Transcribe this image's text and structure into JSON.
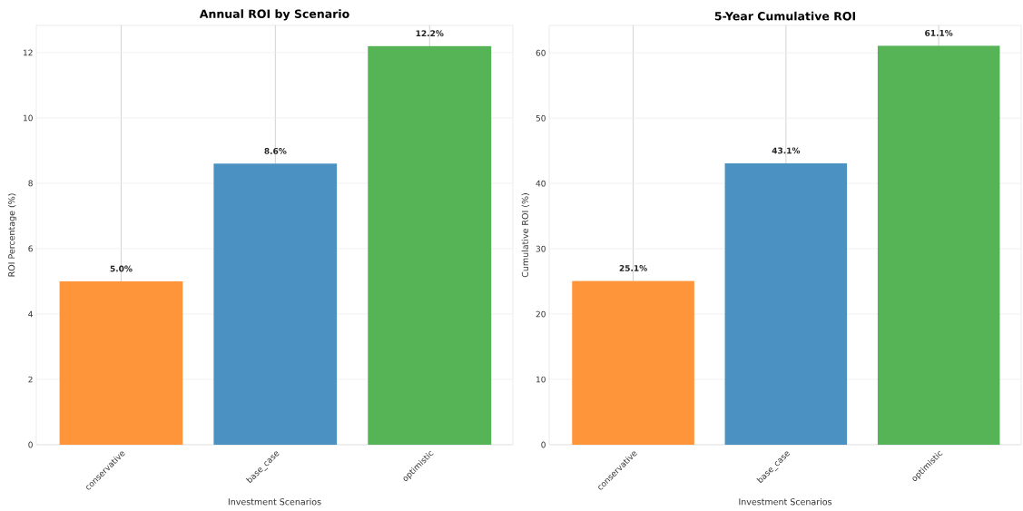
{
  "chart_data": [
    {
      "type": "bar",
      "title": "Annual ROI by Scenario",
      "xlabel": "Investment Scenarios",
      "ylabel": "ROI Percentage (%)",
      "categories": [
        "conservative",
        "base_case",
        "optimistic"
      ],
      "values": [
        5.0,
        8.6,
        12.2
      ],
      "colors": [
        "#ff953a",
        "#4b92c3",
        "#56b356"
      ],
      "value_labels": [
        "5.0%",
        "8.6%",
        "12.2%"
      ],
      "ylim": [
        0,
        12.83
      ],
      "yticks": [
        0,
        2,
        4,
        6,
        8,
        10,
        12
      ],
      "grid": true
    },
    {
      "type": "bar",
      "title": "5-Year Cumulative ROI",
      "xlabel": "Investment Scenarios",
      "ylabel": "Cumulative ROI (%)",
      "categories": [
        "conservative",
        "base_case",
        "optimistic"
      ],
      "values": [
        25.1,
        43.1,
        61.1
      ],
      "colors": [
        "#ff953a",
        "#4b92c3",
        "#56b356"
      ],
      "value_labels": [
        "25.1%",
        "43.1%",
        "61.1%"
      ],
      "ylim": [
        0,
        64.2
      ],
      "yticks": [
        0,
        10,
        20,
        30,
        40,
        50,
        60
      ],
      "grid": true
    }
  ]
}
